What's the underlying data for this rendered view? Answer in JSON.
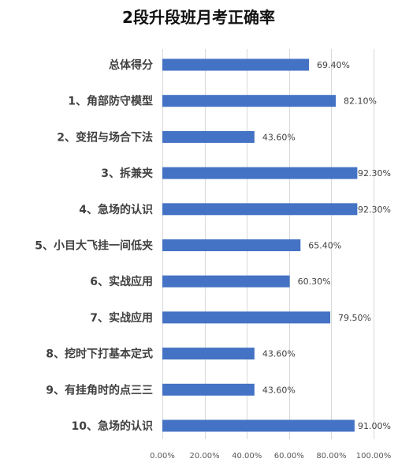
{
  "chart_data": {
    "type": "bar",
    "orientation": "horizontal",
    "title": "2段升段班月考正确率",
    "categories": [
      "总体得分",
      "1、角部防守模型",
      "2、变招与场合下法",
      "3、拆兼夹",
      "4、急场的认识",
      "5、小目大飞挂一间低夹",
      "6、实战应用",
      "7、实战应用",
      "8、挖时下打基本定式",
      "9、有挂角时的点三三",
      "10、急场的认识"
    ],
    "values": [
      69.4,
      82.1,
      43.6,
      92.3,
      92.3,
      65.4,
      60.3,
      79.5,
      43.6,
      43.6,
      91.0
    ],
    "value_labels": [
      "69.40%",
      "82.10%",
      "43.60%",
      "92.30%",
      "92.30%",
      "65.40%",
      "60.30%",
      "79.50%",
      "43.60%",
      "43.60%",
      "91.00%"
    ],
    "xlim": [
      0,
      100
    ],
    "xticks": [
      0,
      20,
      40,
      60,
      80,
      100
    ],
    "xtick_labels": [
      "0.00%",
      "20.00%",
      "40.00%",
      "60.00%",
      "80.00%",
      "100.00%"
    ],
    "bar_color": "#4472c4",
    "grid": true,
    "legend": false
  }
}
